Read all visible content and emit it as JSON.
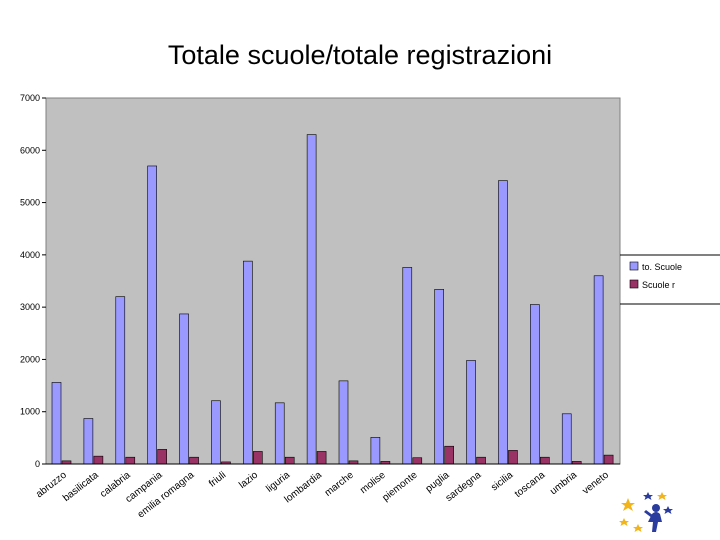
{
  "slide": {
    "title": "Totale scuole/totale registrazioni"
  },
  "chart_data": {
    "type": "bar",
    "title": "",
    "xlabel": "",
    "ylabel": "",
    "ylim": [
      0,
      7000
    ],
    "yticks": [
      0,
      1000,
      2000,
      3000,
      4000,
      5000,
      6000,
      7000
    ],
    "grid": false,
    "legend": "right",
    "categories": [
      "abruzzo",
      "basilicata",
      "calabria",
      "campania",
      "emilia romagna",
      "friuli",
      "lazio",
      "liguria",
      "lombardia",
      "marche",
      "molise",
      "piemonte",
      "puglia",
      "sardegna",
      "sicilia",
      "toscana",
      "umbria",
      "veneto"
    ],
    "series": [
      {
        "name": "to. Scuole",
        "color": "#9999ff",
        "values": [
          1560,
          870,
          3200,
          5700,
          2870,
          1210,
          3880,
          1170,
          6300,
          1590,
          510,
          3760,
          3340,
          1980,
          5420,
          3050,
          960,
          3600
        ]
      },
      {
        "name": "Scuole r",
        "color": "#993366",
        "values": [
          60,
          150,
          130,
          280,
          130,
          40,
          240,
          130,
          240,
          60,
          50,
          120,
          340,
          130,
          260,
          130,
          50,
          170
        ]
      }
    ]
  }
}
